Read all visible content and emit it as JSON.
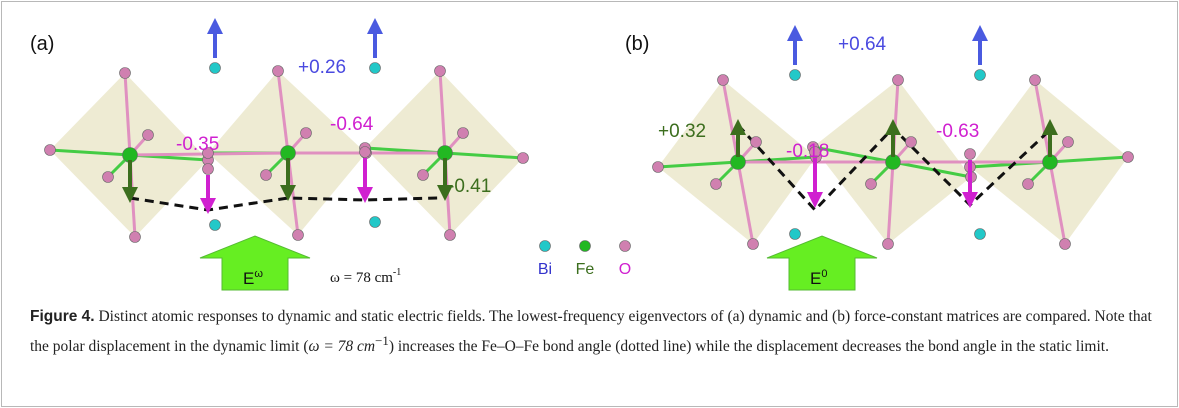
{
  "panels": [
    {
      "label": "(a)",
      "annotations": [
        "+0.26",
        "-0.35",
        "-0.64",
        "-0.41"
      ],
      "field": "E",
      "field_sup": "ω",
      "frequency": "ω = 78 cm",
      "frequency_sup": "-1"
    },
    {
      "label": "(b)",
      "annotations": [
        "+0.64",
        "+0.32",
        "-0.18",
        "-0.63"
      ],
      "field": "E",
      "field_sup": "0"
    }
  ],
  "legend": [
    {
      "label": "Bi",
      "color": "#22c8c8"
    },
    {
      "label": "Fe",
      "color": "#22b822"
    },
    {
      "label": "O",
      "color": "#d080b0"
    }
  ],
  "caption": {
    "label": "Figure 4.",
    "text_1": "Distinct atomic responses to dynamic and static electric fields. The lowest-frequency eigenvectors of (a) dynamic and (b) force-constant matrices are compared. Note that the polar displacement in the dynamic limit (",
    "math": "ω = 78 cm",
    "math_sup": "−1",
    "text_2": ") increases the Fe–O–Fe bond angle (dotted line) while the displacement decreases the bond angle in the static limit."
  }
}
